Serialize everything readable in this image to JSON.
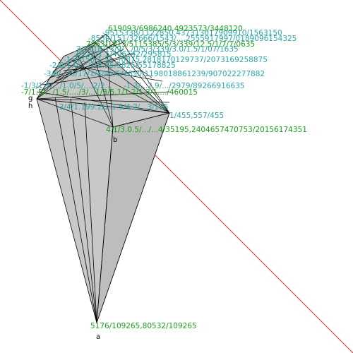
{
  "diagram": {
    "point_labels": {
      "a": "a",
      "b": "b",
      "g": "g",
      "h": "h"
    },
    "coordinate_labels": {
      "l01": "619093/6986240,4923573/3448120",
      "l02": "-9515338/1122850,437313017909910/1563150",
      "l03": "-8539/151/32666/1543/...,2555917997/0189096154325",
      "l04": "7063/1613/5115385/5/3/339/12.5/1/7/7/0635",
      "l05": "3/1118/13/9/.../0/5/3/339/3.0/1.5/1/07/1635",
      "l06": "2/125/1.5/406142/295815",
      "l07": "-1/7/150/1.5/.../0875,2818170129737/2073169258875",
      "l08": "-2/8/1.0/.../1/2.55/3825/55178825",
      "l09": "-3/6/.../5/17/1/4/45/5/7650,1198018861239/907022277882",
      "l10": "-1/3/1.5/.../1.0/5/....2/2...",
      "l11": "-1.3/...2.9/.../2979/89266916635",
      "l12": "-7/1.5/.../1.5/..../3/...1/3/5.1/1.2/1.3/1..../460015",
      "l13": "-3/4/1.199.2/1.1.9/4.2/...3/125",
      "l14": "1/455,557/455",
      "l15": "4.1/3.0.5/.../...4/35195,2404657470753/20156174351",
      "l16": "5176/109265,80532/109265"
    }
  }
}
